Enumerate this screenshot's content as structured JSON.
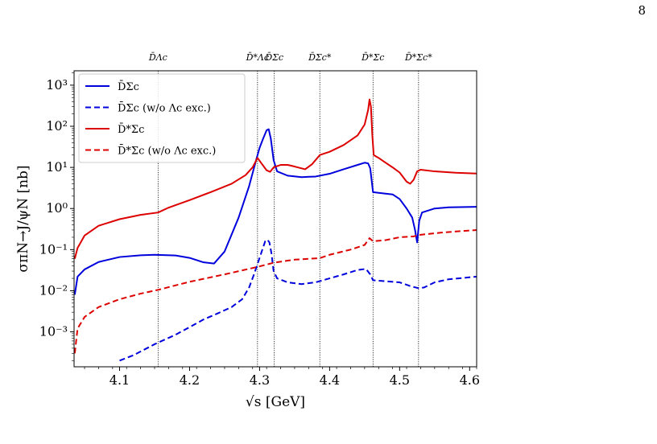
{
  "page": {
    "number": "8"
  },
  "chart_data": {
    "type": "line",
    "xlabel": "√s [GeV]",
    "ylabel": "σπN→J/ψN [nb]",
    "xlim": [
      4.035,
      4.61
    ],
    "ylim_log10": [
      -3.85,
      3.35
    ],
    "yscale": "log",
    "x_ticks": [
      4.1,
      4.2,
      4.3,
      4.4,
      4.5,
      4.6
    ],
    "x_tick_labels": [
      "4.1",
      "4.2",
      "4.3",
      "4.4",
      "4.5",
      "4.6"
    ],
    "y_ticks_exp": [
      -3,
      -2,
      -1,
      0,
      1,
      2,
      3
    ],
    "y_tick_labels": [
      "10⁻³",
      "10⁻²",
      "10⁻¹",
      "10⁰",
      "10¹",
      "10²",
      "10³"
    ],
    "thresholds": [
      {
        "label": "D̄Λc",
        "x": 4.155
      },
      {
        "label": "D̄*Λc",
        "x": 4.297
      },
      {
        "label": "D̄Σc",
        "x": 4.321
      },
      {
        "label": "D̄Σc*",
        "x": 4.386
      },
      {
        "label": "D̄*Σc",
        "x": 4.462
      },
      {
        "label": "D̄*Σc*",
        "x": 4.527
      }
    ],
    "legend": {
      "position": "upper-left"
    },
    "series": [
      {
        "name": "D̄Σc",
        "color": "#0000dd",
        "style": "solid",
        "points": [
          [
            4.036,
            0.008
          ],
          [
            4.04,
            0.022
          ],
          [
            4.05,
            0.033
          ],
          [
            4.07,
            0.05
          ],
          [
            4.1,
            0.066
          ],
          [
            4.13,
            0.073
          ],
          [
            4.15,
            0.075
          ],
          [
            4.18,
            0.072
          ],
          [
            4.2,
            0.063
          ],
          [
            4.22,
            0.049
          ],
          [
            4.235,
            0.046
          ],
          [
            4.25,
            0.09
          ],
          [
            4.27,
            0.6
          ],
          [
            4.285,
            3.5
          ],
          [
            4.295,
            15
          ],
          [
            4.3,
            30
          ],
          [
            4.305,
            50
          ],
          [
            4.31,
            80
          ],
          [
            4.313,
            85
          ],
          [
            4.316,
            50
          ],
          [
            4.32,
            15
          ],
          [
            4.325,
            8
          ],
          [
            4.34,
            6.3
          ],
          [
            4.36,
            5.8
          ],
          [
            4.38,
            6.0
          ],
          [
            4.4,
            7.0
          ],
          [
            4.42,
            9
          ],
          [
            4.44,
            11.5
          ],
          [
            4.45,
            13
          ],
          [
            4.455,
            12.5
          ],
          [
            4.458,
            9.5
          ],
          [
            4.462,
            2.5
          ],
          [
            4.47,
            2.4
          ],
          [
            4.49,
            2.2
          ],
          [
            4.5,
            1.7
          ],
          [
            4.51,
            1.0
          ],
          [
            4.518,
            0.6
          ],
          [
            4.522,
            0.3
          ],
          [
            4.525,
            0.15
          ],
          [
            4.528,
            0.5
          ],
          [
            4.532,
            0.8
          ],
          [
            4.55,
            1.0
          ],
          [
            4.57,
            1.07
          ],
          [
            4.61,
            1.1
          ]
        ]
      },
      {
        "name": "D̄Σc (w/o Λc exc.)",
        "color": "#0000dd",
        "style": "dashed",
        "points": [
          [
            4.1,
            0.0002
          ],
          [
            4.12,
            0.00027
          ],
          [
            4.15,
            0.0005
          ],
          [
            4.18,
            0.00085
          ],
          [
            4.2,
            0.0013
          ],
          [
            4.22,
            0.002
          ],
          [
            4.24,
            0.0028
          ],
          [
            4.26,
            0.004
          ],
          [
            4.275,
            0.0062
          ],
          [
            4.285,
            0.012
          ],
          [
            4.292,
            0.025
          ],
          [
            4.298,
            0.05
          ],
          [
            4.303,
            0.09
          ],
          [
            4.308,
            0.16
          ],
          [
            4.311,
            0.175
          ],
          [
            4.314,
            0.15
          ],
          [
            4.317,
            0.08
          ],
          [
            4.32,
            0.03
          ],
          [
            4.325,
            0.02
          ],
          [
            4.34,
            0.016
          ],
          [
            4.36,
            0.0145
          ],
          [
            4.38,
            0.016
          ],
          [
            4.4,
            0.02
          ],
          [
            4.42,
            0.025
          ],
          [
            4.44,
            0.032
          ],
          [
            4.452,
            0.034
          ],
          [
            4.458,
            0.025
          ],
          [
            4.462,
            0.018
          ],
          [
            4.48,
            0.017
          ],
          [
            4.5,
            0.016
          ],
          [
            4.515,
            0.013
          ],
          [
            4.527,
            0.0115
          ],
          [
            4.535,
            0.012
          ],
          [
            4.55,
            0.016
          ],
          [
            4.57,
            0.019
          ],
          [
            4.61,
            0.022
          ]
        ]
      },
      {
        "name": "D̄*Σc",
        "color": "#dd0000",
        "style": "solid",
        "points": [
          [
            4.036,
            0.06
          ],
          [
            4.04,
            0.11
          ],
          [
            4.05,
            0.22
          ],
          [
            4.07,
            0.38
          ],
          [
            4.1,
            0.55
          ],
          [
            4.13,
            0.7
          ],
          [
            4.155,
            0.8
          ],
          [
            4.17,
            1.05
          ],
          [
            4.2,
            1.6
          ],
          [
            4.23,
            2.5
          ],
          [
            4.26,
            4
          ],
          [
            4.28,
            6.5
          ],
          [
            4.29,
            10
          ],
          [
            4.297,
            17
          ],
          [
            4.302,
            13
          ],
          [
            4.31,
            8.5
          ],
          [
            4.315,
            7.8
          ],
          [
            4.32,
            10
          ],
          [
            4.33,
            11.5
          ],
          [
            4.34,
            11.5
          ],
          [
            4.35,
            10.5
          ],
          [
            4.365,
            9
          ],
          [
            4.375,
            12
          ],
          [
            4.386,
            20
          ],
          [
            4.4,
            24
          ],
          [
            4.42,
            35
          ],
          [
            4.44,
            60
          ],
          [
            4.45,
            110
          ],
          [
            4.455,
            250
          ],
          [
            4.457,
            450
          ],
          [
            4.459,
            300
          ],
          [
            4.461,
            60
          ],
          [
            4.463,
            20
          ],
          [
            4.47,
            17
          ],
          [
            4.48,
            13
          ],
          [
            4.49,
            10
          ],
          [
            4.5,
            7.5
          ],
          [
            4.51,
            4.5
          ],
          [
            4.515,
            4.0
          ],
          [
            4.52,
            5
          ],
          [
            4.525,
            8
          ],
          [
            4.53,
            8.8
          ],
          [
            4.55,
            8
          ],
          [
            4.58,
            7.4
          ],
          [
            4.61,
            7.1
          ]
        ]
      },
      {
        "name": "D̄*Σc (w/o Λc exc.)",
        "color": "#dd0000",
        "style": "dashed",
        "points": [
          [
            4.036,
            0.0003
          ],
          [
            4.04,
            0.0012
          ],
          [
            4.05,
            0.0023
          ],
          [
            4.07,
            0.004
          ],
          [
            4.1,
            0.0062
          ],
          [
            4.13,
            0.0085
          ],
          [
            4.155,
            0.0105
          ],
          [
            4.2,
            0.0165
          ],
          [
            4.25,
            0.025
          ],
          [
            4.297,
            0.038
          ],
          [
            4.32,
            0.048
          ],
          [
            4.35,
            0.057
          ],
          [
            4.386,
            0.062
          ],
          [
            4.4,
            0.075
          ],
          [
            4.43,
            0.1
          ],
          [
            4.45,
            0.13
          ],
          [
            4.457,
            0.19
          ],
          [
            4.462,
            0.16
          ],
          [
            4.48,
            0.17
          ],
          [
            4.5,
            0.2
          ],
          [
            4.52,
            0.21
          ],
          [
            4.53,
            0.23
          ],
          [
            4.56,
            0.26
          ],
          [
            4.61,
            0.3
          ]
        ]
      }
    ]
  }
}
